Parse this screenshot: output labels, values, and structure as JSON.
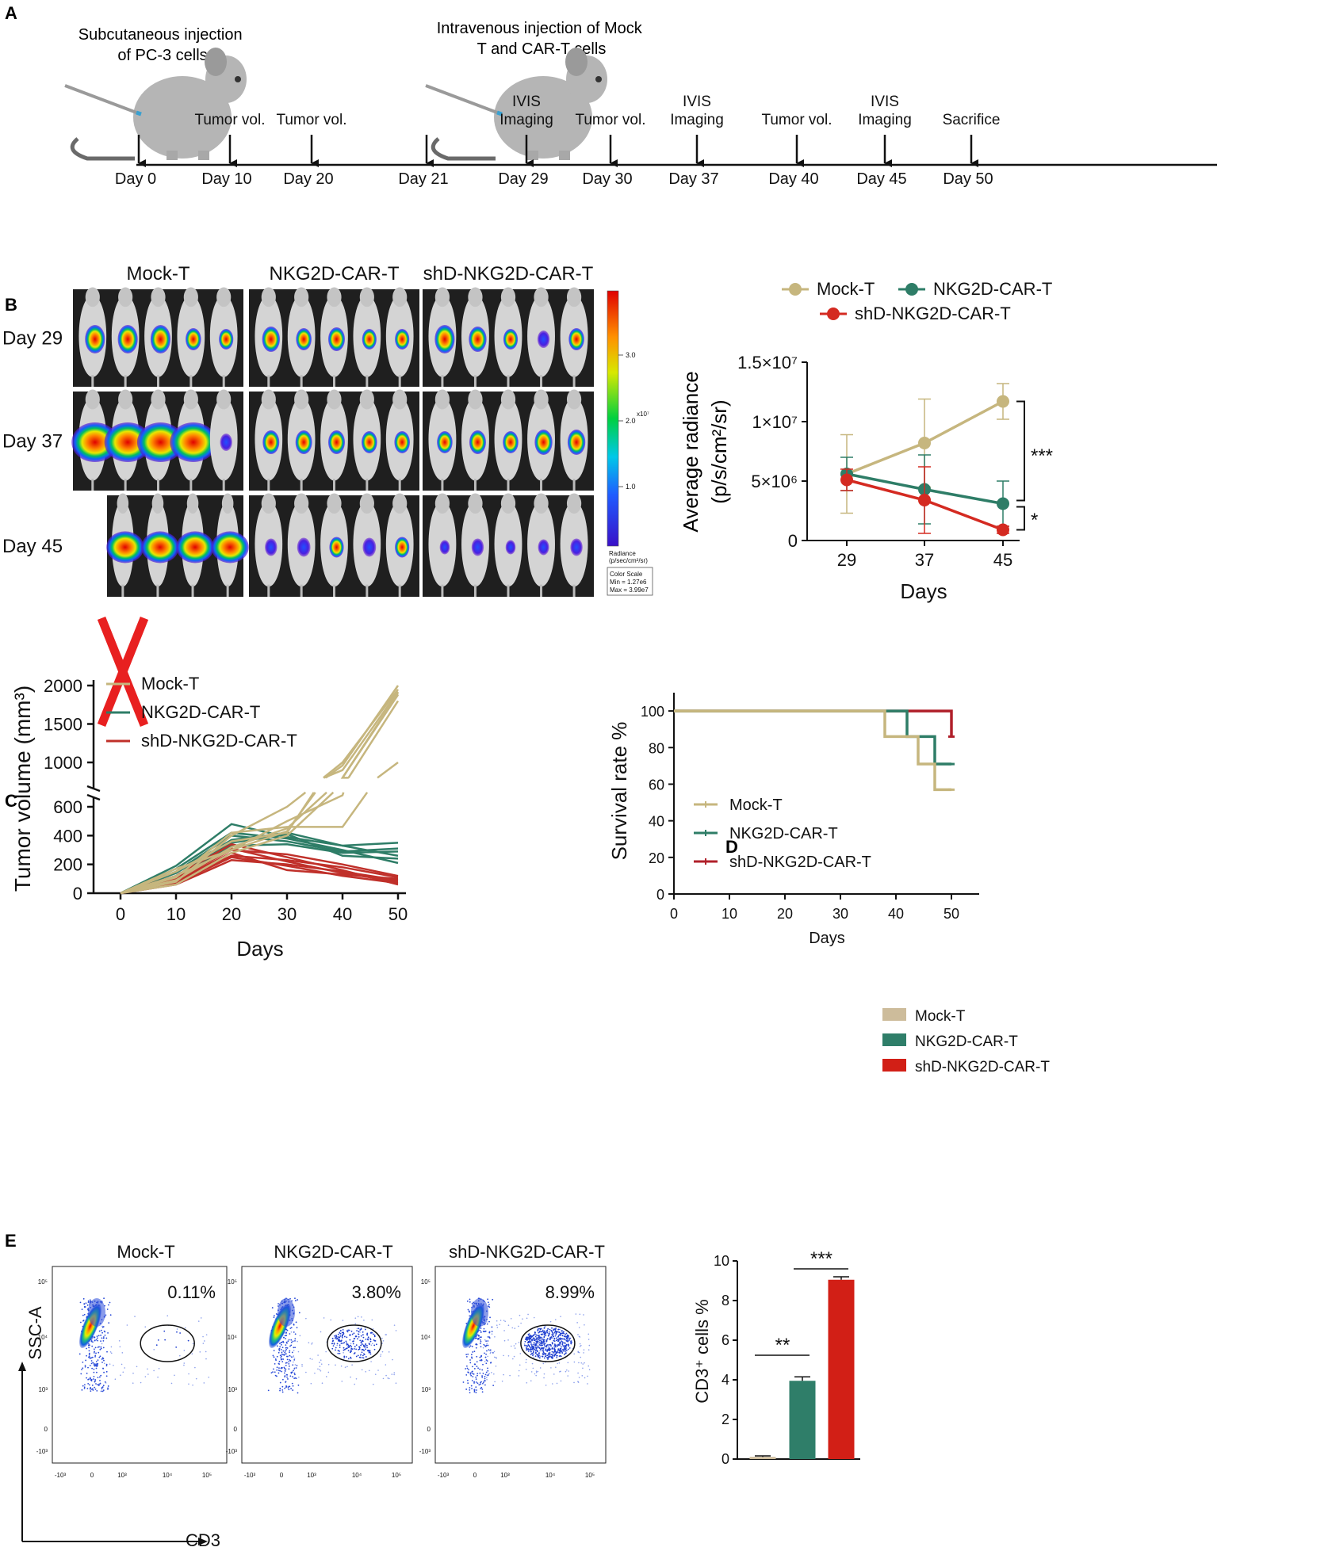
{
  "panel_labels": {
    "a": "A",
    "b": "B",
    "c": "C",
    "d": "D",
    "e": "E"
  },
  "colors": {
    "mock": "#c6b67e",
    "nkg2d": "#2e7d67",
    "shd": "#d42a21",
    "shd_curve": "#c0302a",
    "mock_bar": "#cdbc9b",
    "nkg2d_bar": "#2f7e69",
    "shd_bar": "#d21f16"
  },
  "timeline": {
    "top_labels": {
      "day0": "Subcutaneous injection of PC-3 cells",
      "day21": "Intravenous injection of Mock T and CAR-T cells"
    },
    "events": [
      {
        "day": "Day 0",
        "label": ""
      },
      {
        "day": "Day 10",
        "label": "Tumor vol."
      },
      {
        "day": "Day 20",
        "label": "Tumor vol."
      },
      {
        "day": "Day 21",
        "label": ""
      },
      {
        "day": "Day 29",
        "label": "IVIS Imaging"
      },
      {
        "day": "Day 30",
        "label": "Tumor vol."
      },
      {
        "day": "Day 37",
        "label": "IVIS Imaging"
      },
      {
        "day": "Day 40",
        "label": "Tumor vol."
      },
      {
        "day": "Day 45",
        "label": "IVIS Imaging"
      },
      {
        "day": "Day 50",
        "label": "Sacrifice"
      }
    ]
  },
  "imaging": {
    "groups": [
      "Mock-T",
      "NKG2D-CAR-T",
      "shD-NKG2D-CAR-T"
    ],
    "rows": [
      "Day 29",
      "Day 37",
      "Day 45"
    ],
    "colorbar": {
      "ticks": [
        "3.0",
        "2.0",
        "1.0"
      ],
      "exponent": "x10⁷",
      "units_line1": "Radiance",
      "units_line2": "(p/sec/cm²/sr)",
      "scale_title": "Color Scale",
      "min": "Min = 1.27e6",
      "max": "Max = 3.99e7"
    }
  },
  "chart_data": [
    {
      "id": "B",
      "type": "line",
      "title": "",
      "xlabel": "Days",
      "ylabel": "Average radiance (p/s/cm²/sr)",
      "categories": [
        29,
        37,
        45
      ],
      "ytick_labels": [
        "0",
        "5×10⁶",
        "1×10⁷",
        "1.5×10⁷"
      ],
      "ylim": [
        0,
        15000000
      ],
      "series": [
        {
          "name": "Mock-T",
          "values": [
            5600000,
            8200000,
            11700000
          ],
          "errors": [
            3300000,
            3700000,
            1500000
          ]
        },
        {
          "name": "NKG2D-CAR-T",
          "values": [
            5600000,
            4300000,
            3100000
          ],
          "errors": [
            1400000,
            2900000,
            1900000
          ]
        },
        {
          "name": "shD-NKG2D-CAR-T",
          "values": [
            5100000,
            3400000,
            900000
          ],
          "errors": [
            900000,
            2800000,
            300000
          ]
        }
      ],
      "significance": [
        "***",
        "*"
      ]
    },
    {
      "id": "C",
      "type": "line",
      "title": "",
      "xlabel": "Days",
      "ylabel": "Tumor volume (mm³)",
      "x": [
        0,
        10,
        20,
        30,
        40,
        50
      ],
      "ytick_labels": [
        "0",
        "200",
        "400",
        "600",
        "1000",
        "1500",
        "2000"
      ],
      "broken_axis": {
        "lower": [
          0,
          700
        ],
        "upper": [
          800,
          2000
        ]
      },
      "series": [
        {
          "name": "Mock-T",
          "lines": [
            [
              0,
              120,
              300,
              430,
              960,
              2000
            ],
            [
              0,
              90,
              320,
              450,
              800,
              1880
            ],
            [
              0,
              150,
              360,
              420,
              1000,
              1950
            ],
            [
              0,
              60,
              280,
              400,
              760,
              1900
            ],
            [
              0,
              110,
              420,
              460,
              460,
              1000
            ],
            [
              0,
              170,
              300,
              500,
              680,
              1800
            ],
            [
              0,
              80,
              400,
              600,
              900,
              1920
            ]
          ]
        },
        {
          "name": "NKG2D-CAR-T",
          "lines": [
            [
              0,
              190,
              480,
              390,
              330,
              350
            ],
            [
              0,
              150,
              400,
              360,
              290,
              310
            ],
            [
              0,
              120,
              350,
              410,
              260,
              240
            ],
            [
              0,
              170,
              420,
              380,
              300,
              210
            ],
            [
              0,
              100,
              330,
              340,
              280,
              290
            ],
            [
              0,
              140,
              370,
              420,
              330,
              260
            ]
          ]
        },
        {
          "name": "shD-NKG2D-CAR-T",
          "lines": [
            [
              0,
              100,
              300,
              270,
              200,
              120
            ],
            [
              0,
              80,
              260,
              230,
              180,
              110
            ],
            [
              0,
              120,
              340,
              250,
              160,
              60
            ],
            [
              0,
              60,
              230,
              200,
              150,
              90
            ],
            [
              0,
              90,
              280,
              160,
              130,
              100
            ],
            [
              0,
              110,
              310,
              220,
              140,
              80
            ],
            [
              0,
              70,
              250,
              190,
              120,
              70
            ]
          ]
        }
      ]
    },
    {
      "id": "D",
      "type": "line",
      "title": "",
      "xlabel": "Days",
      "ylabel": "Survival rate %",
      "x_ticks": [
        0,
        10,
        20,
        30,
        40,
        50
      ],
      "y_ticks": [
        0,
        20,
        40,
        60,
        80,
        100
      ],
      "xlim": [
        0,
        55
      ],
      "ylim": [
        0,
        110
      ],
      "series": [
        {
          "name": "Mock-T",
          "steps": [
            [
              0,
              100
            ],
            [
              38,
              100
            ],
            [
              38,
              86
            ],
            [
              44,
              86
            ],
            [
              44,
              71
            ],
            [
              47,
              71
            ],
            [
              47,
              57
            ],
            [
              50,
              57
            ]
          ]
        },
        {
          "name": "NKG2D-CAR-T",
          "steps": [
            [
              0,
              100
            ],
            [
              42,
              100
            ],
            [
              42,
              86
            ],
            [
              47,
              86
            ],
            [
              47,
              71
            ],
            [
              50,
              71
            ]
          ]
        },
        {
          "name": "shD-NKG2D-CAR-T",
          "steps": [
            [
              0,
              100
            ],
            [
              50,
              100
            ],
            [
              50,
              86
            ]
          ]
        }
      ]
    },
    {
      "id": "E-flow",
      "type": "scatter",
      "xlabel": "CD3",
      "ylabel": "SSC-A",
      "panels": [
        {
          "name": "Mock-T",
          "percent": "0.11%"
        },
        {
          "name": "NKG2D-CAR-T",
          "percent": "3.80%"
        },
        {
          "name": "shD-NKG2D-CAR-T",
          "percent": "8.99%"
        }
      ],
      "x_tick_labels": [
        "-10³",
        "0",
        "10³",
        "10⁴",
        "10⁵"
      ],
      "y_tick_labels": [
        "10⁵",
        "10⁴",
        "10³",
        "0",
        "-10³"
      ]
    },
    {
      "id": "E-bar",
      "type": "bar",
      "xlabel": "",
      "ylabel": "CD3⁺ cells %",
      "categories": [
        "Mock-T",
        "NKG2D-CAR-T",
        "shD-NKG2D-CAR-T"
      ],
      "values": [
        0.11,
        3.95,
        9.05
      ],
      "errors": [
        0.05,
        0.2,
        0.15
      ],
      "y_ticks": [
        0,
        2,
        4,
        6,
        8,
        10
      ],
      "ylim": [
        0,
        10
      ],
      "significance": [
        "**",
        "***"
      ]
    }
  ]
}
